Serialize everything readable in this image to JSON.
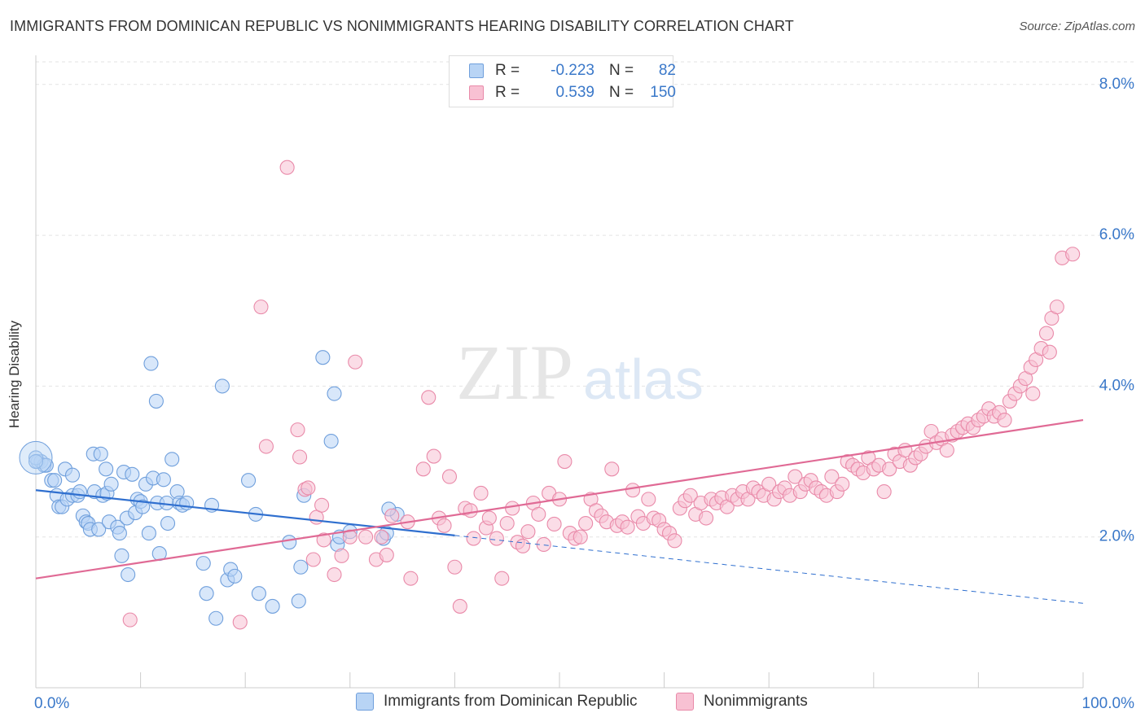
{
  "title": "IMMIGRANTS FROM DOMINICAN REPUBLIC VS NONIMMIGRANTS HEARING DISABILITY CORRELATION CHART",
  "source": "Source: ZipAtlas.com",
  "watermark": {
    "zip": "ZIP",
    "atlas": "atlas"
  },
  "legend": {
    "rows": [
      {
        "r_label": "R =",
        "r_value": "-0.223",
        "n_label": "N =",
        "n_value": "82",
        "fill": "#b8d4f5",
        "stroke": "#6f9fdc"
      },
      {
        "r_label": "R =",
        "r_value": "0.539",
        "n_label": "N =",
        "n_value": "150",
        "fill": "#f8c1d3",
        "stroke": "#e98aa9"
      }
    ]
  },
  "chart_data": {
    "type": "scatter",
    "title": "IMMIGRANTS FROM DOMINICAN REPUBLIC VS NONIMMIGRANTS HEARING DISABILITY CORRELATION CHART",
    "xlabel": "",
    "ylabel": "Hearing Disability",
    "x_unit": "%",
    "xlim": [
      0,
      100
    ],
    "ylim": [
      0,
      8.3
    ],
    "x_tick_labels": [
      "0.0%",
      "100.0%"
    ],
    "y_ticks": [
      2,
      4,
      6,
      8
    ],
    "y_tick_labels": [
      "2.0%",
      "4.0%",
      "6.0%",
      "8.0%"
    ],
    "grid": true,
    "legend_position": "top-center",
    "series": [
      {
        "name": "Immigrants from Dominican Republic",
        "color": "#6f9fdc",
        "fill": "#b8d4f5",
        "r": -0.223,
        "n": 82,
        "trend": {
          "x0": 0,
          "y0": 2.62,
          "x1": 40,
          "y1": 2.02,
          "dash_to_x": 100,
          "dash_to_y": 1.12
        },
        "points": [
          [
            0.2,
            3.0
          ],
          [
            0.5,
            3.0
          ],
          [
            0.8,
            2.95
          ],
          [
            1.0,
            2.95
          ],
          [
            1.5,
            2.75
          ],
          [
            1.8,
            2.75
          ],
          [
            2.0,
            2.55
          ],
          [
            2.2,
            2.4
          ],
          [
            2.5,
            2.4
          ],
          [
            2.8,
            2.9
          ],
          [
            3.0,
            2.5
          ],
          [
            3.5,
            2.55
          ],
          [
            3.5,
            2.82
          ],
          [
            4.0,
            2.55
          ],
          [
            4.2,
            2.6
          ],
          [
            4.5,
            2.28
          ],
          [
            4.8,
            2.2
          ],
          [
            5.0,
            2.18
          ],
          [
            5.2,
            2.1
          ],
          [
            5.5,
            3.1
          ],
          [
            5.6,
            2.6
          ],
          [
            6.0,
            2.1
          ],
          [
            6.2,
            3.1
          ],
          [
            6.4,
            2.55
          ],
          [
            6.8,
            2.58
          ],
          [
            6.7,
            2.9
          ],
          [
            7.0,
            2.2
          ],
          [
            7.2,
            2.7
          ],
          [
            7.8,
            2.13
          ],
          [
            8.0,
            2.05
          ],
          [
            8.2,
            1.75
          ],
          [
            8.4,
            2.86
          ],
          [
            8.7,
            2.25
          ],
          [
            8.8,
            1.5
          ],
          [
            9.2,
            2.83
          ],
          [
            9.5,
            2.32
          ],
          [
            9.7,
            2.5
          ],
          [
            10.0,
            2.47
          ],
          [
            10.2,
            2.4
          ],
          [
            10.5,
            2.7
          ],
          [
            10.8,
            2.05
          ],
          [
            11.0,
            4.3
          ],
          [
            11.2,
            2.78
          ],
          [
            11.5,
            3.8
          ],
          [
            11.6,
            2.45
          ],
          [
            11.8,
            1.78
          ],
          [
            12.2,
            2.76
          ],
          [
            12.5,
            2.45
          ],
          [
            12.6,
            2.18
          ],
          [
            13.0,
            3.03
          ],
          [
            13.5,
            2.6
          ],
          [
            13.7,
            2.45
          ],
          [
            14.0,
            2.42
          ],
          [
            14.4,
            2.45
          ],
          [
            16.0,
            1.65
          ],
          [
            16.3,
            1.25
          ],
          [
            16.8,
            2.42
          ],
          [
            17.2,
            0.92
          ],
          [
            17.8,
            4.0
          ],
          [
            18.3,
            1.43
          ],
          [
            18.6,
            1.57
          ],
          [
            19.0,
            1.48
          ],
          [
            20.3,
            2.75
          ],
          [
            21.0,
            2.3
          ],
          [
            21.3,
            1.25
          ],
          [
            22.6,
            1.08
          ],
          [
            24.2,
            1.93
          ],
          [
            25.1,
            1.15
          ],
          [
            25.3,
            1.6
          ],
          [
            25.6,
            2.55
          ],
          [
            27.4,
            4.38
          ],
          [
            28.2,
            3.27
          ],
          [
            28.5,
            3.9
          ],
          [
            28.8,
            1.9
          ],
          [
            29.0,
            2.0
          ],
          [
            30.0,
            2.07
          ],
          [
            33.2,
            1.98
          ],
          [
            33.5,
            2.05
          ],
          [
            34.5,
            2.3
          ],
          [
            33.7,
            2.37
          ],
          [
            0.0,
            3.05
          ],
          [
            0.0,
            3.0
          ]
        ]
      },
      {
        "name": "Nonimmigrants",
        "color": "#e98aa9",
        "fill": "#f8c1d3",
        "r": 0.539,
        "n": 150,
        "trend": {
          "x0": 0,
          "y0": 1.45,
          "x1": 100,
          "y1": 3.55
        },
        "points": [
          [
            9.0,
            0.9
          ],
          [
            19.5,
            0.87
          ],
          [
            21.5,
            5.05
          ],
          [
            22.0,
            3.2
          ],
          [
            24.0,
            6.9
          ],
          [
            25.0,
            3.42
          ],
          [
            25.2,
            3.06
          ],
          [
            25.7,
            2.63
          ],
          [
            26.0,
            2.65
          ],
          [
            26.5,
            1.7
          ],
          [
            26.8,
            2.26
          ],
          [
            27.3,
            2.42
          ],
          [
            27.5,
            1.96
          ],
          [
            28.5,
            1.5
          ],
          [
            29.2,
            1.75
          ],
          [
            30.0,
            2.0
          ],
          [
            30.5,
            4.32
          ],
          [
            31.5,
            2.0
          ],
          [
            32.5,
            1.7
          ],
          [
            33.5,
            1.76
          ],
          [
            33.0,
            2.0
          ],
          [
            34.0,
            2.28
          ],
          [
            35.5,
            2.2
          ],
          [
            35.8,
            1.45
          ],
          [
            37.0,
            2.9
          ],
          [
            37.5,
            3.85
          ],
          [
            38.0,
            3.07
          ],
          [
            38.5,
            2.25
          ],
          [
            39.0,
            2.15
          ],
          [
            39.5,
            2.8
          ],
          [
            40.0,
            1.6
          ],
          [
            40.5,
            1.08
          ],
          [
            41.0,
            2.38
          ],
          [
            41.5,
            2.35
          ],
          [
            41.8,
            1.98
          ],
          [
            42.5,
            2.58
          ],
          [
            43.0,
            2.12
          ],
          [
            43.3,
            2.25
          ],
          [
            44.0,
            1.98
          ],
          [
            44.5,
            1.45
          ],
          [
            45.0,
            2.18
          ],
          [
            45.5,
            2.38
          ],
          [
            46.0,
            1.93
          ],
          [
            46.5,
            1.88
          ],
          [
            47.0,
            2.07
          ],
          [
            47.5,
            2.45
          ],
          [
            48.0,
            2.3
          ],
          [
            48.5,
            1.9
          ],
          [
            49.0,
            2.58
          ],
          [
            49.5,
            2.17
          ],
          [
            50.0,
            2.5
          ],
          [
            50.5,
            3.0
          ],
          [
            51.0,
            2.05
          ],
          [
            51.5,
            1.98
          ],
          [
            52.0,
            2.0
          ],
          [
            52.5,
            2.18
          ],
          [
            53.0,
            2.5
          ],
          [
            53.5,
            2.35
          ],
          [
            54.0,
            2.28
          ],
          [
            54.5,
            2.2
          ],
          [
            55.0,
            2.9
          ],
          [
            55.5,
            2.15
          ],
          [
            56.0,
            2.2
          ],
          [
            56.5,
            2.13
          ],
          [
            57.0,
            2.62
          ],
          [
            57.5,
            2.27
          ],
          [
            58.0,
            2.18
          ],
          [
            58.5,
            2.5
          ],
          [
            59.0,
            2.25
          ],
          [
            59.5,
            2.22
          ],
          [
            60.0,
            2.1
          ],
          [
            60.5,
            2.05
          ],
          [
            61.0,
            1.95
          ],
          [
            61.5,
            2.38
          ],
          [
            62.0,
            2.48
          ],
          [
            62.5,
            2.55
          ],
          [
            63.0,
            2.3
          ],
          [
            63.5,
            2.45
          ],
          [
            64.0,
            2.25
          ],
          [
            64.5,
            2.5
          ],
          [
            65.0,
            2.45
          ],
          [
            65.5,
            2.52
          ],
          [
            66.0,
            2.4
          ],
          [
            66.5,
            2.55
          ],
          [
            67.0,
            2.5
          ],
          [
            67.5,
            2.6
          ],
          [
            68.0,
            2.5
          ],
          [
            68.5,
            2.65
          ],
          [
            69.0,
            2.6
          ],
          [
            69.5,
            2.55
          ],
          [
            70.0,
            2.7
          ],
          [
            70.5,
            2.5
          ],
          [
            71.0,
            2.6
          ],
          [
            71.5,
            2.65
          ],
          [
            72.0,
            2.55
          ],
          [
            72.5,
            2.8
          ],
          [
            73.0,
            2.6
          ],
          [
            73.5,
            2.7
          ],
          [
            74.0,
            2.75
          ],
          [
            74.5,
            2.65
          ],
          [
            75.0,
            2.6
          ],
          [
            75.5,
            2.55
          ],
          [
            76.0,
            2.8
          ],
          [
            76.5,
            2.6
          ],
          [
            77.0,
            2.7
          ],
          [
            77.5,
            3.0
          ],
          [
            78.0,
            2.95
          ],
          [
            78.5,
            2.9
          ],
          [
            79.0,
            2.85
          ],
          [
            79.5,
            3.05
          ],
          [
            80.0,
            2.9
          ],
          [
            80.5,
            2.95
          ],
          [
            81.0,
            2.6
          ],
          [
            81.5,
            2.9
          ],
          [
            82.0,
            3.1
          ],
          [
            82.5,
            3.0
          ],
          [
            83.0,
            3.15
          ],
          [
            83.5,
            2.95
          ],
          [
            84.0,
            3.05
          ],
          [
            84.5,
            3.1
          ],
          [
            85.0,
            3.2
          ],
          [
            85.5,
            3.4
          ],
          [
            86.0,
            3.25
          ],
          [
            86.5,
            3.3
          ],
          [
            87.0,
            3.15
          ],
          [
            87.5,
            3.35
          ],
          [
            88.0,
            3.4
          ],
          [
            88.5,
            3.45
          ],
          [
            89.0,
            3.5
          ],
          [
            89.5,
            3.45
          ],
          [
            90.0,
            3.55
          ],
          [
            90.5,
            3.6
          ],
          [
            91.0,
            3.7
          ],
          [
            91.5,
            3.6
          ],
          [
            92.0,
            3.65
          ],
          [
            92.5,
            3.55
          ],
          [
            93.0,
            3.8
          ],
          [
            93.5,
            3.9
          ],
          [
            94.0,
            4.0
          ],
          [
            94.5,
            4.1
          ],
          [
            95.0,
            4.25
          ],
          [
            95.5,
            4.35
          ],
          [
            96.0,
            4.5
          ],
          [
            96.5,
            4.7
          ],
          [
            97.0,
            4.9
          ],
          [
            97.5,
            5.05
          ],
          [
            98.0,
            5.7
          ],
          [
            99.0,
            5.75
          ],
          [
            95.2,
            3.9
          ],
          [
            96.8,
            4.45
          ]
        ]
      }
    ]
  },
  "bottom_legend": [
    {
      "label": "Immigrants from Dominican Republic",
      "fill": "#b8d4f5",
      "stroke": "#6f9fdc"
    },
    {
      "label": "Nonimmigrants",
      "fill": "#f8c1d3",
      "stroke": "#e98aa9"
    }
  ]
}
